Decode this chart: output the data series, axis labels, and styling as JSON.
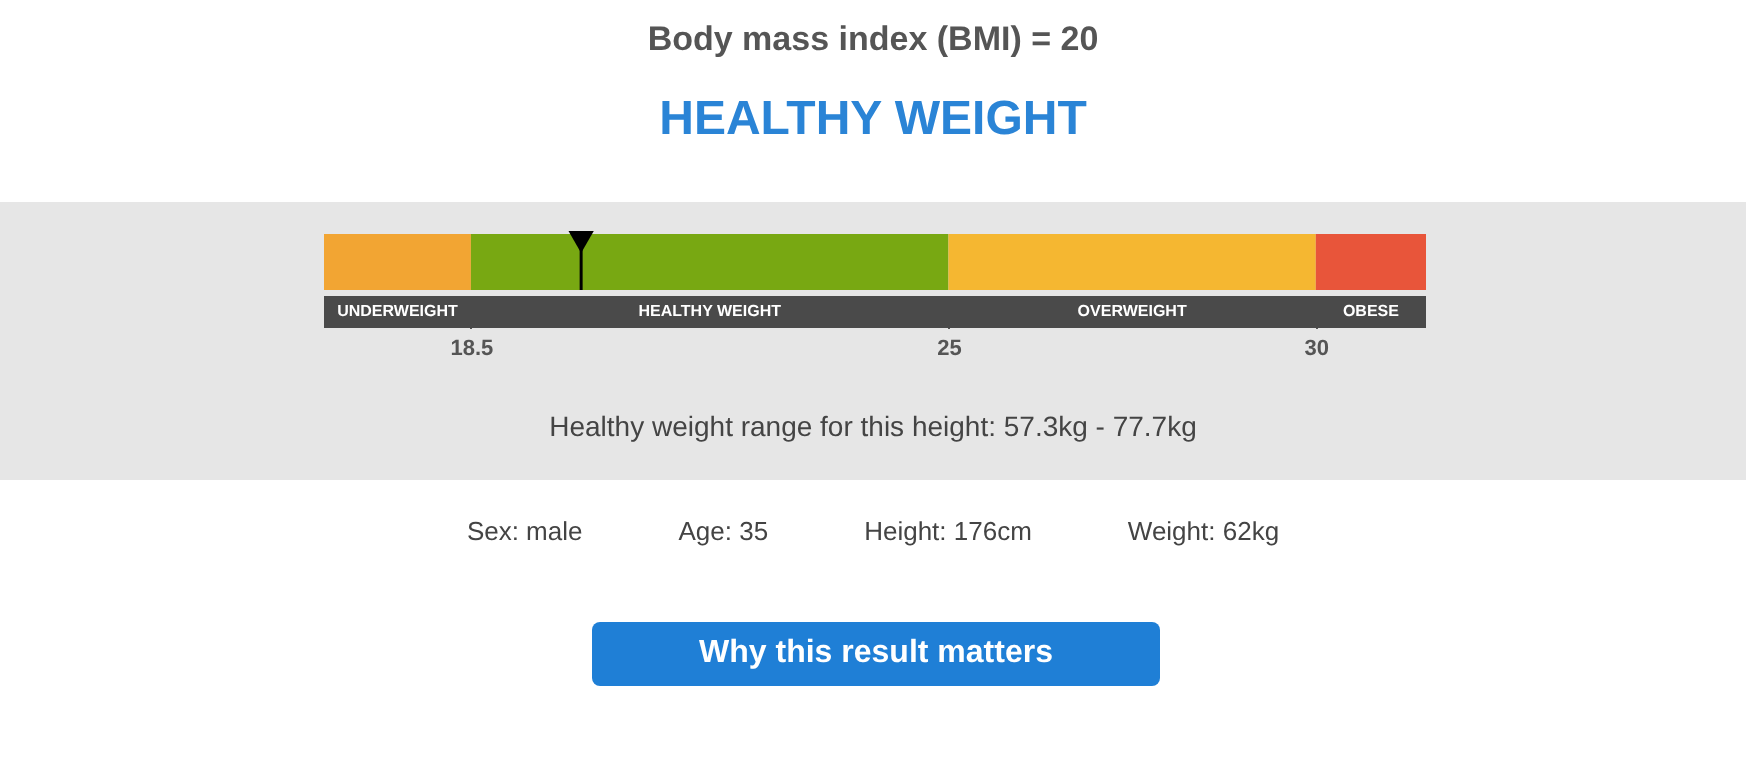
{
  "chart_data": {
    "type": "bar",
    "orientation": "horizontal",
    "title": "Body mass index (BMI) = 20",
    "subtitle": "HEALTHY WEIGHT",
    "categories": [
      null
    ],
    "series": [
      {
        "name": "UNDERWEIGHT",
        "color": "#f2a533",
        "values": [
          2
        ],
        "base": [
          16.5
        ]
      },
      {
        "name": "HEALTHY WEIGHT",
        "color": "#78a812",
        "values": [
          6.5
        ],
        "base": [
          18.5
        ]
      },
      {
        "name": "OVERWEIGHT",
        "color": "#f5b731",
        "values": [
          5
        ],
        "base": [
          25
        ]
      },
      {
        "name": "OBESE",
        "color": "#e8553a",
        "values": [
          1.5
        ],
        "base": [
          30
        ]
      }
    ],
    "xlim": [
      16.5,
      31.5
    ],
    "xticks": [
      18.5,
      25,
      30
    ],
    "ref_lines": [
      {
        "axis": "x",
        "value": 20
      }
    ],
    "annotations": [
      "Healthy weight range for this height: 57.3kg - 77.7kg",
      "Sex: male",
      "Age: 35",
      "Height: 176cm",
      "Weight: 62kg",
      "Why this result matters"
    ]
  }
}
